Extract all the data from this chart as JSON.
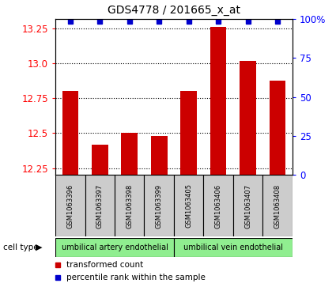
{
  "title": "GDS4778 / 201665_x_at",
  "samples": [
    "GSM1063396",
    "GSM1063397",
    "GSM1063398",
    "GSM1063399",
    "GSM1063405",
    "GSM1063406",
    "GSM1063407",
    "GSM1063408"
  ],
  "red_values": [
    12.8,
    12.42,
    12.505,
    12.48,
    12.8,
    13.26,
    13.02,
    12.875
  ],
  "blue_percentiles": [
    100,
    100,
    100,
    100,
    100,
    100,
    100,
    100
  ],
  "ylim_left": [
    12.2,
    13.32
  ],
  "ylim_right": [
    0,
    100
  ],
  "yticks_left": [
    12.25,
    12.5,
    12.75,
    13.0,
    13.25
  ],
  "yticks_right": [
    0,
    25,
    50,
    75,
    100
  ],
  "cell_groups": [
    {
      "label": "umbilical artery endothelial",
      "start": 0,
      "end": 4,
      "color": "#90ee90"
    },
    {
      "label": "umbilical vein endothelial",
      "start": 4,
      "end": 8,
      "color": "#90ee90"
    }
  ],
  "bar_color": "#cc0000",
  "dot_color": "#0000cc",
  "label_box_color": "#cccccc",
  "base_value": 12.2,
  "bar_width": 0.55
}
